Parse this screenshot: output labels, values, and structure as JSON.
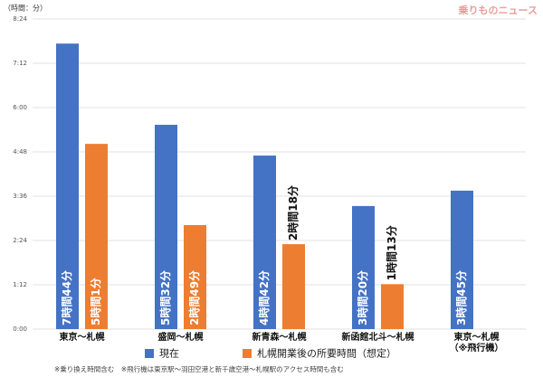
{
  "chart_data": {
    "type": "bar",
    "unit_label": "（時間：分）",
    "watermark": "乗りものニュース",
    "footnote": "※乗り換え時間含む　※飛行機は東京駅～羽田空港と新千歳空港～札幌駅のアクセス時間も含む",
    "categories": [
      "東京～札幌",
      "盛岡～札幌",
      "新青森～札幌",
      "新函館北斗～札幌",
      "東京～札幌\n（※飛行機）"
    ],
    "series": [
      {
        "name": "現在",
        "color": "#4472c4",
        "values": [
          464,
          332,
          282,
          200,
          225
        ],
        "value_labels": [
          "7時間44分",
          "5時間32分",
          "4時間42分",
          "3時間20分",
          "3時間45分"
        ]
      },
      {
        "name": "札幌開業後の所要時間（想定）",
        "color": "#ed7d31",
        "values": [
          301,
          169,
          138,
          73,
          null
        ],
        "value_labels": [
          "5時間1分",
          "2時間49分",
          "2時間18分",
          "1時間13分",
          null
        ]
      }
    ],
    "ylim": [
      0,
      504
    ],
    "yticks": [
      {
        "value": 0,
        "label": "0:00"
      },
      {
        "value": 72,
        "label": "1:12"
      },
      {
        "value": 144,
        "label": "2:24"
      },
      {
        "value": 216,
        "label": "3:36"
      },
      {
        "value": 288,
        "label": "4:48"
      },
      {
        "value": 360,
        "label": "6:00"
      },
      {
        "value": 432,
        "label": "7:12"
      },
      {
        "value": 504,
        "label": "8:24"
      }
    ],
    "grid": true
  }
}
